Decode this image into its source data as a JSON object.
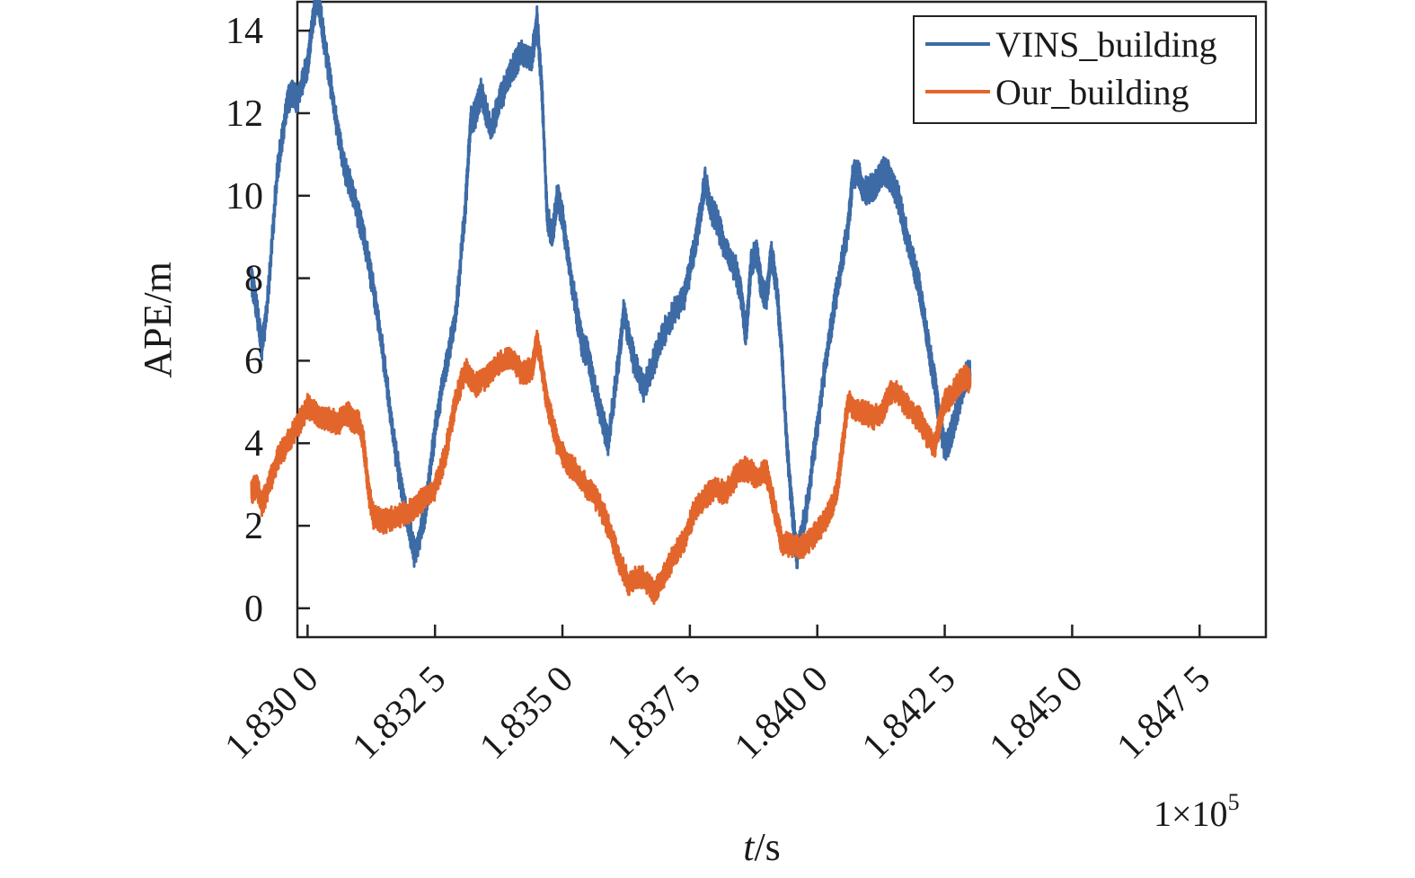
{
  "chart_data": {
    "type": "line",
    "xlabel_italic": "t",
    "xlabel_unit": "/s",
    "ylabel": "APE/m",
    "x_scale_note": "1×10",
    "x_scale_exp": "5",
    "xlim": [
      1.8298,
      1.8488
    ],
    "ylim": [
      -0.7,
      14.7
    ],
    "x_ticks": [
      1.83,
      1.8325,
      1.835,
      1.8375,
      1.84,
      1.8425,
      1.845,
      1.8475
    ],
    "x_tick_labels": [
      "1.830 0",
      "1.832 5",
      "1.835 0",
      "1.837 5",
      "1.840 0",
      "1.842 5",
      "1.845 0",
      "1.847 5"
    ],
    "y_ticks": [
      0,
      2,
      4,
      6,
      8,
      10,
      12,
      14
    ],
    "y_tick_labels": [
      "0",
      "2",
      "4",
      "6",
      "8",
      "10",
      "12",
      "14"
    ],
    "legend_position": "top-right",
    "series": [
      {
        "name": "VINS_building",
        "color": "#3d6ba6",
        "noise": 0.35,
        "points": [
          [
            1.8289,
            8.0
          ],
          [
            1.829,
            7.3
          ],
          [
            1.8291,
            6.3
          ],
          [
            1.8292,
            7.2
          ],
          [
            1.8294,
            10.5
          ],
          [
            1.8296,
            12.3
          ],
          [
            1.8297,
            12.5
          ],
          [
            1.8298,
            12.3
          ],
          [
            1.83,
            13.2
          ],
          [
            1.8301,
            14.2
          ],
          [
            1.8302,
            14.9
          ],
          [
            1.8303,
            14.0
          ],
          [
            1.8305,
            12.3
          ],
          [
            1.8307,
            10.8
          ],
          [
            1.8309,
            10.0
          ],
          [
            1.8311,
            9.0
          ],
          [
            1.8313,
            7.7
          ],
          [
            1.8315,
            6.0
          ],
          [
            1.8317,
            4.0
          ],
          [
            1.8319,
            2.5
          ],
          [
            1.8321,
            1.3
          ],
          [
            1.8323,
            2.2
          ],
          [
            1.8325,
            4.3
          ],
          [
            1.8327,
            5.8
          ],
          [
            1.8329,
            7.0
          ],
          [
            1.8331,
            9.8
          ],
          [
            1.8332,
            11.8
          ],
          [
            1.8333,
            12.0
          ],
          [
            1.8334,
            12.5
          ],
          [
            1.8336,
            11.6
          ],
          [
            1.8338,
            12.4
          ],
          [
            1.834,
            13.0
          ],
          [
            1.8342,
            13.5
          ],
          [
            1.8344,
            13.3
          ],
          [
            1.8345,
            14.3
          ],
          [
            1.8346,
            12.5
          ],
          [
            1.8347,
            9.5
          ],
          [
            1.8348,
            9.0
          ],
          [
            1.8349,
            10.0
          ],
          [
            1.835,
            9.5
          ],
          [
            1.8351,
            8.6
          ],
          [
            1.8353,
            7.0
          ],
          [
            1.8354,
            6.3
          ],
          [
            1.8355,
            6.2
          ],
          [
            1.8356,
            5.5
          ],
          [
            1.8358,
            4.5
          ],
          [
            1.8359,
            4.0
          ],
          [
            1.8361,
            6.0
          ],
          [
            1.8362,
            7.2
          ],
          [
            1.8364,
            6.0
          ],
          [
            1.8366,
            5.3
          ],
          [
            1.8368,
            6.0
          ],
          [
            1.837,
            6.7
          ],
          [
            1.8372,
            7.2
          ],
          [
            1.8374,
            7.6
          ],
          [
            1.8376,
            8.8
          ],
          [
            1.8377,
            9.5
          ],
          [
            1.8378,
            10.4
          ],
          [
            1.8379,
            9.7
          ],
          [
            1.838,
            9.5
          ],
          [
            1.8382,
            8.7
          ],
          [
            1.8384,
            8.2
          ],
          [
            1.8385,
            7.6
          ],
          [
            1.8386,
            6.6
          ],
          [
            1.8387,
            8.3
          ],
          [
            1.8388,
            8.7
          ],
          [
            1.8389,
            7.8
          ],
          [
            1.839,
            7.5
          ],
          [
            1.8391,
            8.6
          ],
          [
            1.8392,
            7.8
          ],
          [
            1.8393,
            6.3
          ],
          [
            1.8394,
            4.0
          ],
          [
            1.8395,
            2.5
          ],
          [
            1.8396,
            1.2
          ],
          [
            1.8398,
            2.5
          ],
          [
            1.84,
            4.4
          ],
          [
            1.8402,
            6.3
          ],
          [
            1.8404,
            7.8
          ],
          [
            1.8406,
            9.2
          ],
          [
            1.8407,
            10.5
          ],
          [
            1.8408,
            10.6
          ],
          [
            1.8409,
            10.1
          ],
          [
            1.8411,
            10.2
          ],
          [
            1.8412,
            10.4
          ],
          [
            1.8413,
            10.6
          ],
          [
            1.8414,
            10.5
          ],
          [
            1.8415,
            10.2
          ],
          [
            1.8416,
            9.9
          ],
          [
            1.8417,
            9.3
          ],
          [
            1.8419,
            8.3
          ],
          [
            1.842,
            7.8
          ],
          [
            1.8421,
            7.0
          ],
          [
            1.8422,
            6.2
          ],
          [
            1.8423,
            5.5
          ],
          [
            1.8424,
            4.6
          ],
          [
            1.8425,
            3.9
          ],
          [
            1.8426,
            4.1
          ],
          [
            1.8427,
            4.6
          ],
          [
            1.8428,
            5.1
          ],
          [
            1.8429,
            5.6
          ],
          [
            1.843,
            5.7
          ]
        ]
      },
      {
        "name": "Our_building",
        "color": "#e2662c",
        "noise": 0.3,
        "points": [
          [
            1.8289,
            2.8
          ],
          [
            1.829,
            3.0
          ],
          [
            1.8291,
            2.5
          ],
          [
            1.8292,
            2.8
          ],
          [
            1.8294,
            3.6
          ],
          [
            1.8296,
            4.0
          ],
          [
            1.8298,
            4.4
          ],
          [
            1.83,
            4.9
          ],
          [
            1.8302,
            4.7
          ],
          [
            1.8304,
            4.6
          ],
          [
            1.8306,
            4.5
          ],
          [
            1.8308,
            4.7
          ],
          [
            1.8309,
            4.5
          ],
          [
            1.831,
            4.5
          ],
          [
            1.8311,
            4.0
          ],
          [
            1.8312,
            2.8
          ],
          [
            1.8313,
            2.2
          ],
          [
            1.8315,
            2.1
          ],
          [
            1.8317,
            2.2
          ],
          [
            1.8319,
            2.3
          ],
          [
            1.8321,
            2.4
          ],
          [
            1.8323,
            2.7
          ],
          [
            1.8325,
            2.9
          ],
          [
            1.8327,
            3.7
          ],
          [
            1.8329,
            5.0
          ],
          [
            1.8331,
            5.8
          ],
          [
            1.8333,
            5.4
          ],
          [
            1.8335,
            5.6
          ],
          [
            1.8337,
            5.9
          ],
          [
            1.8339,
            6.0
          ],
          [
            1.834,
            6.1
          ],
          [
            1.8342,
            5.7
          ],
          [
            1.8344,
            5.8
          ],
          [
            1.8345,
            6.5
          ],
          [
            1.8346,
            5.8
          ],
          [
            1.8347,
            5.0
          ],
          [
            1.8349,
            4.0
          ],
          [
            1.8351,
            3.5
          ],
          [
            1.8353,
            3.3
          ],
          [
            1.8355,
            2.9
          ],
          [
            1.8357,
            2.6
          ],
          [
            1.8359,
            2.0
          ],
          [
            1.8361,
            1.2
          ],
          [
            1.8363,
            0.6
          ],
          [
            1.8365,
            0.8
          ],
          [
            1.8367,
            0.6
          ],
          [
            1.8368,
            0.4
          ],
          [
            1.837,
            0.8
          ],
          [
            1.8372,
            1.3
          ],
          [
            1.8374,
            1.7
          ],
          [
            1.8376,
            2.4
          ],
          [
            1.8378,
            2.7
          ],
          [
            1.838,
            2.9
          ],
          [
            1.8382,
            2.8
          ],
          [
            1.8384,
            3.2
          ],
          [
            1.8386,
            3.4
          ],
          [
            1.8388,
            3.2
          ],
          [
            1.839,
            3.3
          ],
          [
            1.8391,
            2.8
          ],
          [
            1.8392,
            2.2
          ],
          [
            1.8393,
            1.6
          ],
          [
            1.8395,
            1.5
          ],
          [
            1.8397,
            1.5
          ],
          [
            1.8399,
            1.7
          ],
          [
            1.8401,
            2.0
          ],
          [
            1.8403,
            2.5
          ],
          [
            1.8404,
            3.0
          ],
          [
            1.8405,
            4.0
          ],
          [
            1.8406,
            5.0
          ],
          [
            1.8408,
            4.8
          ],
          [
            1.841,
            4.7
          ],
          [
            1.8411,
            4.6
          ],
          [
            1.8413,
            4.8
          ],
          [
            1.8414,
            5.2
          ],
          [
            1.8415,
            5.3
          ],
          [
            1.8417,
            5.0
          ],
          [
            1.8419,
            4.7
          ],
          [
            1.842,
            4.6
          ],
          [
            1.8421,
            4.3
          ],
          [
            1.8423,
            3.9
          ],
          [
            1.8424,
            4.5
          ],
          [
            1.8425,
            5.0
          ],
          [
            1.8426,
            5.1
          ],
          [
            1.8427,
            5.3
          ],
          [
            1.8428,
            5.5
          ],
          [
            1.8429,
            5.6
          ],
          [
            1.843,
            5.5
          ]
        ]
      }
    ]
  }
}
